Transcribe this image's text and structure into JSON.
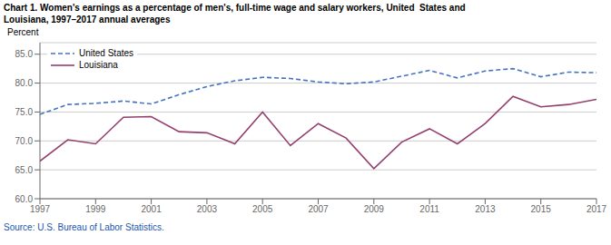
{
  "chart_data": {
    "type": "line",
    "title": "Chart 1. Women's earnings as a percentage of men's, full-time wage and salary workers, United  States and\nLouisiana, 1997–2017 annual averages",
    "ylabel": "Percent",
    "source": "Source: U.S. Bureau of Labor Statistics.",
    "x": [
      1997,
      1998,
      1999,
      2000,
      2001,
      2002,
      2003,
      2004,
      2005,
      2006,
      2007,
      2008,
      2009,
      2010,
      2011,
      2012,
      2013,
      2014,
      2015,
      2016,
      2017
    ],
    "series": [
      {
        "name": "United States",
        "color": "#4472C4",
        "line_style": "dashed",
        "values": [
          74.6,
          76.3,
          76.5,
          76.9,
          76.4,
          78.0,
          79.4,
          80.4,
          81.0,
          80.8,
          80.2,
          79.9,
          80.2,
          81.2,
          82.2,
          80.9,
          82.1,
          82.5,
          81.1,
          81.9,
          81.8
        ]
      },
      {
        "name": "Louisiana",
        "color": "#943F6E",
        "line_style": "solid",
        "values": [
          66.5,
          70.2,
          69.5,
          74.1,
          74.2,
          71.6,
          71.4,
          69.5,
          75.0,
          69.2,
          73.0,
          70.5,
          65.2,
          69.8,
          72.1,
          69.5,
          73.0,
          77.7,
          75.9,
          76.3,
          77.2
        ]
      }
    ],
    "xlim": [
      1997,
      2017
    ],
    "xticks": [
      1997,
      1999,
      2001,
      2003,
      2005,
      2007,
      2009,
      2011,
      2013,
      2015,
      2017
    ],
    "ylim": [
      60.0,
      87.0
    ],
    "yticks": [
      {
        "value": 60,
        "label": "60.0"
      },
      {
        "value": 65,
        "label": "65.0"
      },
      {
        "value": 70,
        "label": "70.0"
      },
      {
        "value": 75,
        "label": "75.0"
      },
      {
        "value": 80,
        "label": "80.0"
      },
      {
        "value": 85,
        "label": "85.0"
      }
    ],
    "grid": true,
    "legend": "upper left",
    "source_color": "#2255AA"
  }
}
